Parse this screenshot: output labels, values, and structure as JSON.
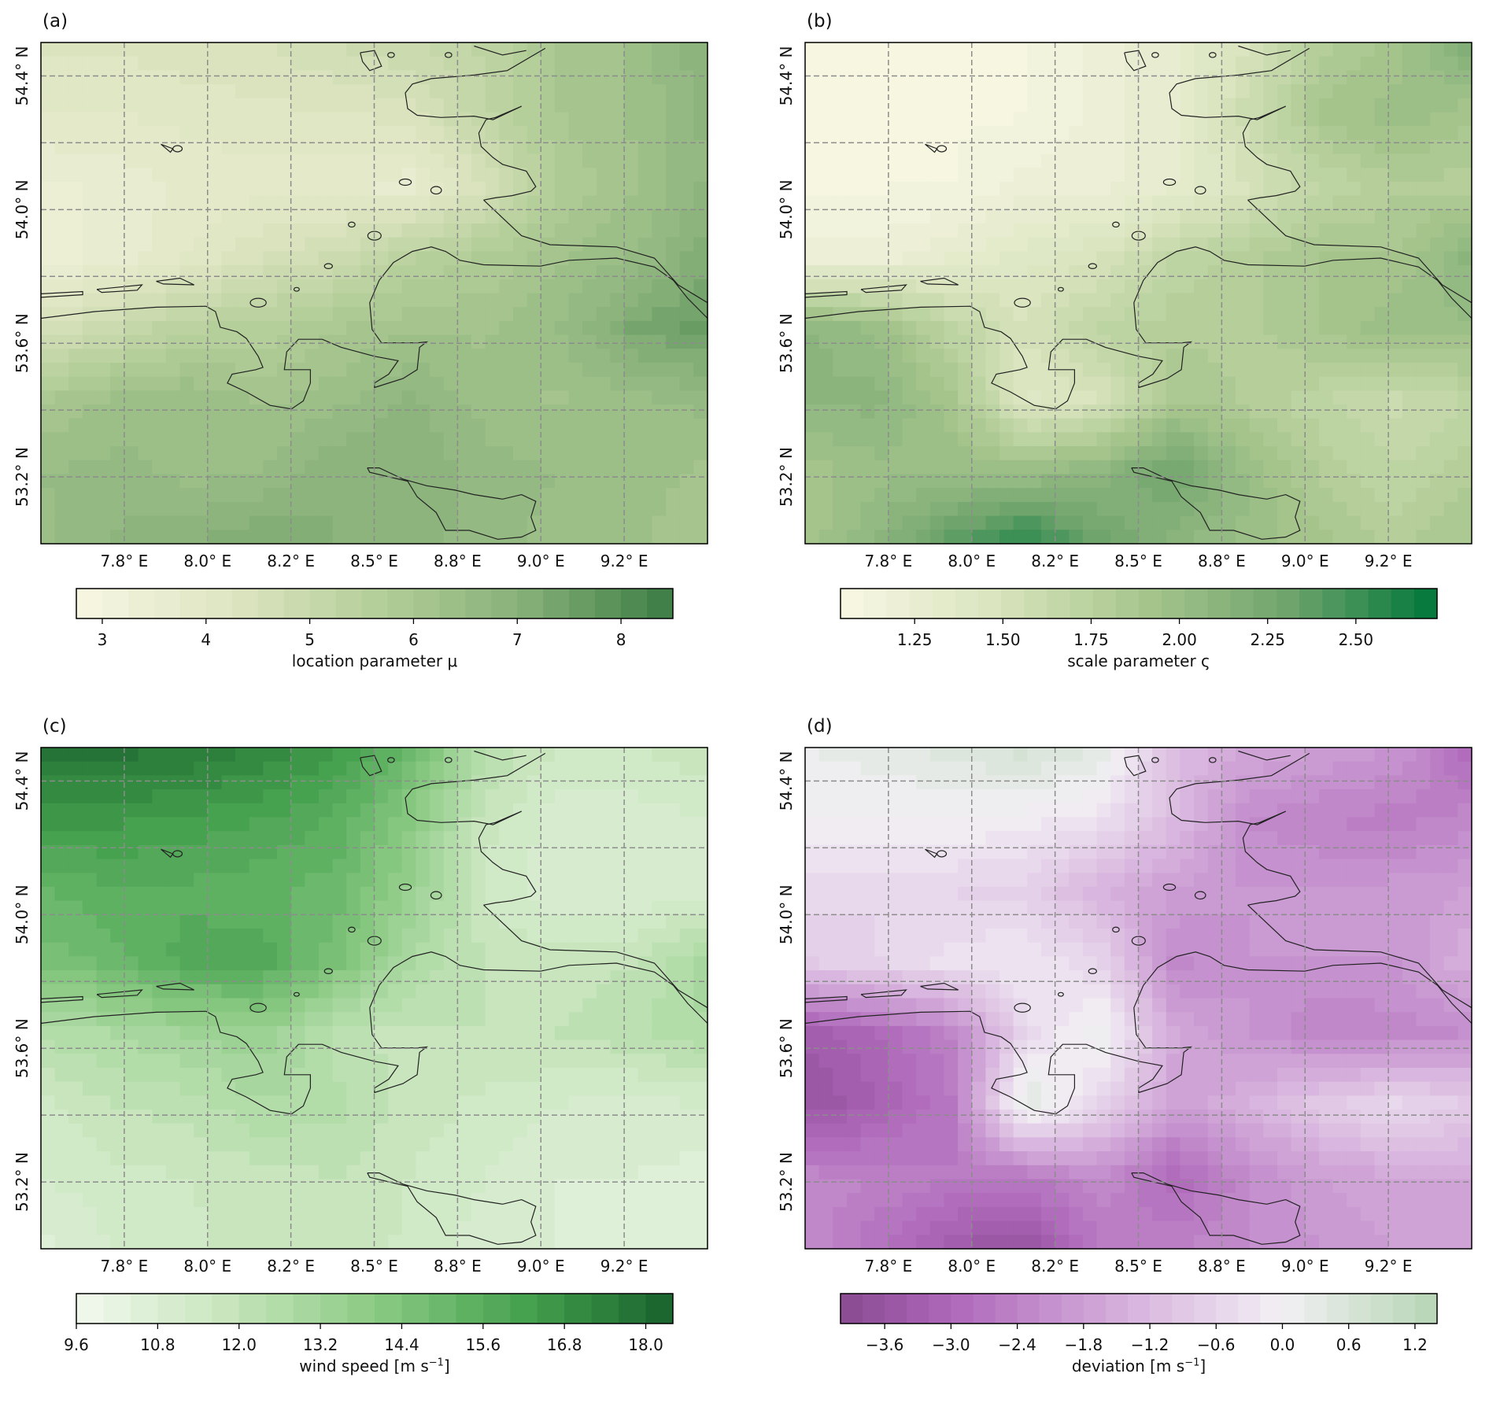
{
  "chart_data": [
    {
      "panel_label": "(a)",
      "type": "heatmap",
      "title": "",
      "lon_range": [
        7.5,
        9.5
      ],
      "lat_range": [
        53.0,
        54.5
      ],
      "lon_ticks": [
        7.75,
        8.0,
        8.25,
        8.5,
        8.75,
        9.0,
        9.25
      ],
      "lon_tick_labels": [
        "7.8° E",
        "8.0° E",
        "8.2° E",
        "8.5° E",
        "8.8° E",
        "9.0° E",
        "9.2° E"
      ],
      "lat_gridlines": [
        54.4,
        54.2,
        54.0,
        53.8,
        53.6,
        53.4,
        53.2
      ],
      "lat_ticks": [
        54.4,
        54.0,
        53.6,
        53.2
      ],
      "lat_tick_labels": [
        "54.4° N",
        "54.0° N",
        "53.6° N",
        "53.2° N"
      ],
      "colorbar": {
        "label": "location parameter μ",
        "range": [
          2.75,
          8.5
        ],
        "step": 0.25,
        "ticks": [
          3,
          4,
          5,
          6,
          7,
          8
        ],
        "tick_labels": [
          "3",
          "4",
          "5",
          "6",
          "7",
          "8"
        ],
        "colors": [
          "#f7f6e3",
          "#dfe6c3",
          "#b5cf9a",
          "#86b077",
          "#3a7d45"
        ]
      },
      "grid_values": [
        [
          4.3,
          4.3,
          4.4,
          4.5,
          4.8,
          5.0,
          5.3,
          6.0,
          6.3,
          7.0
        ],
        [
          4.0,
          4.0,
          4.1,
          4.2,
          4.2,
          4.4,
          5.2,
          6.0,
          6.3,
          6.8
        ],
        [
          3.4,
          3.6,
          3.8,
          3.9,
          3.8,
          3.6,
          4.5,
          5.8,
          6.2,
          6.8
        ],
        [
          3.3,
          3.6,
          4.0,
          4.5,
          4.8,
          5.5,
          5.8,
          6.2,
          6.5,
          7.2
        ],
        [
          4.5,
          5.0,
          5.5,
          5.6,
          6.0,
          6.2,
          6.2,
          6.5,
          7.3,
          7.6
        ],
        [
          6.0,
          6.3,
          6.5,
          6.2,
          6.4,
          6.8,
          6.4,
          6.2,
          6.4,
          6.6
        ],
        [
          6.5,
          6.6,
          6.4,
          6.5,
          7.0,
          7.0,
          6.6,
          6.5,
          6.4,
          6.2
        ],
        [
          6.4,
          6.8,
          7.0,
          7.3,
          7.0,
          6.9,
          6.6,
          6.4,
          6.3,
          6.0
        ]
      ]
    },
    {
      "panel_label": "(b)",
      "type": "heatmap",
      "title": "",
      "lon_range": [
        7.5,
        9.5
      ],
      "lat_range": [
        53.0,
        54.5
      ],
      "lon_ticks": [
        7.75,
        8.0,
        8.25,
        8.5,
        8.75,
        9.0,
        9.25
      ],
      "lon_tick_labels": [
        "7.8° E",
        "8.0° E",
        "8.2° E",
        "8.5° E",
        "8.8° E",
        "9.0° E",
        "9.2° E"
      ],
      "lat_gridlines": [
        54.4,
        54.2,
        54.0,
        53.8,
        53.6,
        53.4,
        53.2
      ],
      "lat_ticks": [
        54.4,
        54.0,
        53.6,
        53.2
      ],
      "lat_tick_labels": [
        "54.4° N",
        "54.0° N",
        "53.6° N",
        "53.2° N"
      ],
      "colorbar": {
        "label": "scale parameter ς",
        "range": [
          1.04,
          2.73
        ],
        "step": 0.065,
        "ticks": [
          1.25,
          1.5,
          1.75,
          2.0,
          2.25,
          2.5
        ],
        "tick_labels": [
          "1.25",
          "1.50",
          "1.75",
          "2.00",
          "2.25",
          "2.50"
        ],
        "colors": [
          "#f8f7e4",
          "#dbe5c0",
          "#a9c78f",
          "#6fa46c",
          "#00773a"
        ]
      },
      "grid_values": [
        [
          1.1,
          1.1,
          1.1,
          1.1,
          1.2,
          1.3,
          1.5,
          1.8,
          1.9,
          2.2
        ],
        [
          1.1,
          1.1,
          1.1,
          1.1,
          1.2,
          1.3,
          1.6,
          1.9,
          2.0,
          1.9
        ],
        [
          1.1,
          1.1,
          1.1,
          1.2,
          1.2,
          1.3,
          1.5,
          1.7,
          1.8,
          1.8
        ],
        [
          1.2,
          1.2,
          1.3,
          1.4,
          1.5,
          1.7,
          1.8,
          1.9,
          1.9,
          2.1
        ],
        [
          2.1,
          2.0,
          1.7,
          1.5,
          1.7,
          1.8,
          1.8,
          1.9,
          2.0,
          2.0
        ],
        [
          2.1,
          2.1,
          1.9,
          1.4,
          1.5,
          1.9,
          1.8,
          1.7,
          1.6,
          1.7
        ],
        [
          1.9,
          2.0,
          2.0,
          2.0,
          2.1,
          2.3,
          2.0,
          1.8,
          1.7,
          1.8
        ],
        [
          1.9,
          2.1,
          2.4,
          2.6,
          2.3,
          2.1,
          2.0,
          1.9,
          1.8,
          1.9
        ]
      ]
    },
    {
      "panel_label": "(c)",
      "type": "heatmap",
      "title": "",
      "lon_range": [
        7.5,
        9.5
      ],
      "lat_range": [
        53.0,
        54.5
      ],
      "lon_ticks": [
        7.75,
        8.0,
        8.25,
        8.5,
        8.75,
        9.0,
        9.25
      ],
      "lon_tick_labels": [
        "7.8° E",
        "8.0° E",
        "8.2° E",
        "8.5° E",
        "8.8° E",
        "9.0° E",
        "9.2° E"
      ],
      "lat_gridlines": [
        54.4,
        54.2,
        54.0,
        53.8,
        53.6,
        53.4,
        53.2
      ],
      "lat_ticks": [
        54.4,
        54.0,
        53.6,
        53.2
      ],
      "lat_tick_labels": [
        "54.4° N",
        "54.0° N",
        "53.6° N",
        "53.2° N"
      ],
      "colorbar": {
        "label": "wind speed [m s",
        "label_sup": "−1",
        "label_end": "]",
        "range": [
          9.6,
          18.4
        ],
        "step": 0.4,
        "ticks": [
          9.6,
          10.8,
          12.0,
          13.2,
          14.4,
          15.6,
          16.8,
          18.0
        ],
        "tick_labels": [
          "9.6",
          "10.8",
          "12.0",
          "13.2",
          "14.4",
          "15.6",
          "16.8",
          "18.0"
        ],
        "colors": [
          "#f2f9ee",
          "#c8e5bd",
          "#8ccb84",
          "#46a24f",
          "#18612c"
        ]
      },
      "grid_values": [
        [
          17.8,
          17.8,
          17.6,
          17.2,
          16.5,
          15.0,
          12.5,
          11.5,
          11.5,
          12.0
        ],
        [
          16.5,
          16.5,
          16.3,
          16.0,
          15.5,
          14.0,
          11.8,
          11.0,
          11.0,
          11.2
        ],
        [
          15.2,
          15.5,
          15.5,
          15.3,
          15.0,
          13.5,
          11.5,
          10.8,
          10.8,
          11.0
        ],
        [
          14.5,
          15.0,
          15.8,
          15.8,
          14.5,
          12.8,
          12.0,
          11.8,
          12.0,
          13.0
        ],
        [
          12.5,
          12.8,
          13.2,
          13.5,
          12.2,
          11.8,
          12.0,
          12.0,
          12.3,
          12.8
        ],
        [
          11.5,
          12.0,
          12.2,
          12.8,
          12.5,
          11.8,
          11.5,
          11.2,
          11.0,
          11.2
        ],
        [
          11.2,
          11.5,
          11.6,
          11.8,
          12.0,
          11.6,
          11.2,
          10.8,
          10.8,
          10.6
        ],
        [
          10.6,
          11.2,
          11.5,
          11.8,
          11.8,
          11.5,
          11.0,
          10.8,
          10.6,
          10.4
        ]
      ]
    },
    {
      "panel_label": "(d)",
      "type": "heatmap",
      "title": "",
      "lon_range": [
        7.5,
        9.5
      ],
      "lat_range": [
        53.0,
        54.5
      ],
      "lon_ticks": [
        7.75,
        8.0,
        8.25,
        8.5,
        8.75,
        9.0,
        9.25
      ],
      "lon_tick_labels": [
        "7.8° E",
        "8.0° E",
        "8.2° E",
        "8.5° E",
        "8.8° E",
        "9.0° E",
        "9.2° E"
      ],
      "lat_gridlines": [
        54.4,
        54.2,
        54.0,
        53.8,
        53.6,
        53.4,
        53.2
      ],
      "lat_ticks": [
        54.4,
        54.0,
        53.6,
        53.2
      ],
      "lat_tick_labels": [
        "54.4° N",
        "54.0° N",
        "53.6° N",
        "53.2° N"
      ],
      "colorbar": {
        "label": "deviation [m s",
        "label_sup": "−1",
        "label_end": "]",
        "range": [
          -4.0,
          1.4
        ],
        "step": 0.2,
        "ticks": [
          -3.6,
          -3.0,
          -2.4,
          -1.8,
          -1.2,
          -0.6,
          0.0,
          0.6,
          1.2
        ],
        "tick_labels": [
          "−3.6",
          "−3.0",
          "−2.4",
          "−1.8",
          "−1.2",
          "−0.6",
          "0.0",
          "0.6",
          "1.2"
        ],
        "colors": [
          "#884a91",
          "#b16bbc",
          "#d9b6df",
          "#f3eff4",
          "#b6d6b4"
        ],
        "color_positions": [
          0,
          0.2,
          0.5,
          0.74,
          1
        ]
      },
      "grid_values": [
        [
          0.2,
          0.3,
          0.5,
          0.7,
          0.4,
          -1.2,
          -1.6,
          -1.8,
          -2.0,
          -3.0
        ],
        [
          0.0,
          0.0,
          0.0,
          -0.1,
          -0.3,
          -1.2,
          -2.2,
          -2.4,
          -2.5,
          -2.3
        ],
        [
          -0.5,
          -0.6,
          -0.6,
          -0.7,
          -1.4,
          -1.8,
          -2.0,
          -2.0,
          -1.9,
          -1.8
        ],
        [
          -0.8,
          -0.6,
          -0.3,
          -0.2,
          -0.6,
          -2.3,
          -2.0,
          -2.0,
          -2.0,
          -1.4
        ],
        [
          -3.4,
          -3.0,
          -2.4,
          -0.5,
          0.2,
          -1.6,
          -2.0,
          -2.4,
          -2.3,
          -2.2
        ],
        [
          -3.6,
          -3.2,
          -2.6,
          0.5,
          -0.6,
          -1.8,
          -1.4,
          -0.8,
          -0.5,
          -0.8
        ],
        [
          -2.3,
          -2.4,
          -2.6,
          -2.6,
          -2.2,
          -3.0,
          -2.2,
          -1.8,
          -1.6,
          -1.6
        ],
        [
          -2.2,
          -2.8,
          -3.4,
          -3.7,
          -2.6,
          -2.4,
          -2.2,
          -2.0,
          -1.8,
          -1.8
        ]
      ]
    }
  ]
}
